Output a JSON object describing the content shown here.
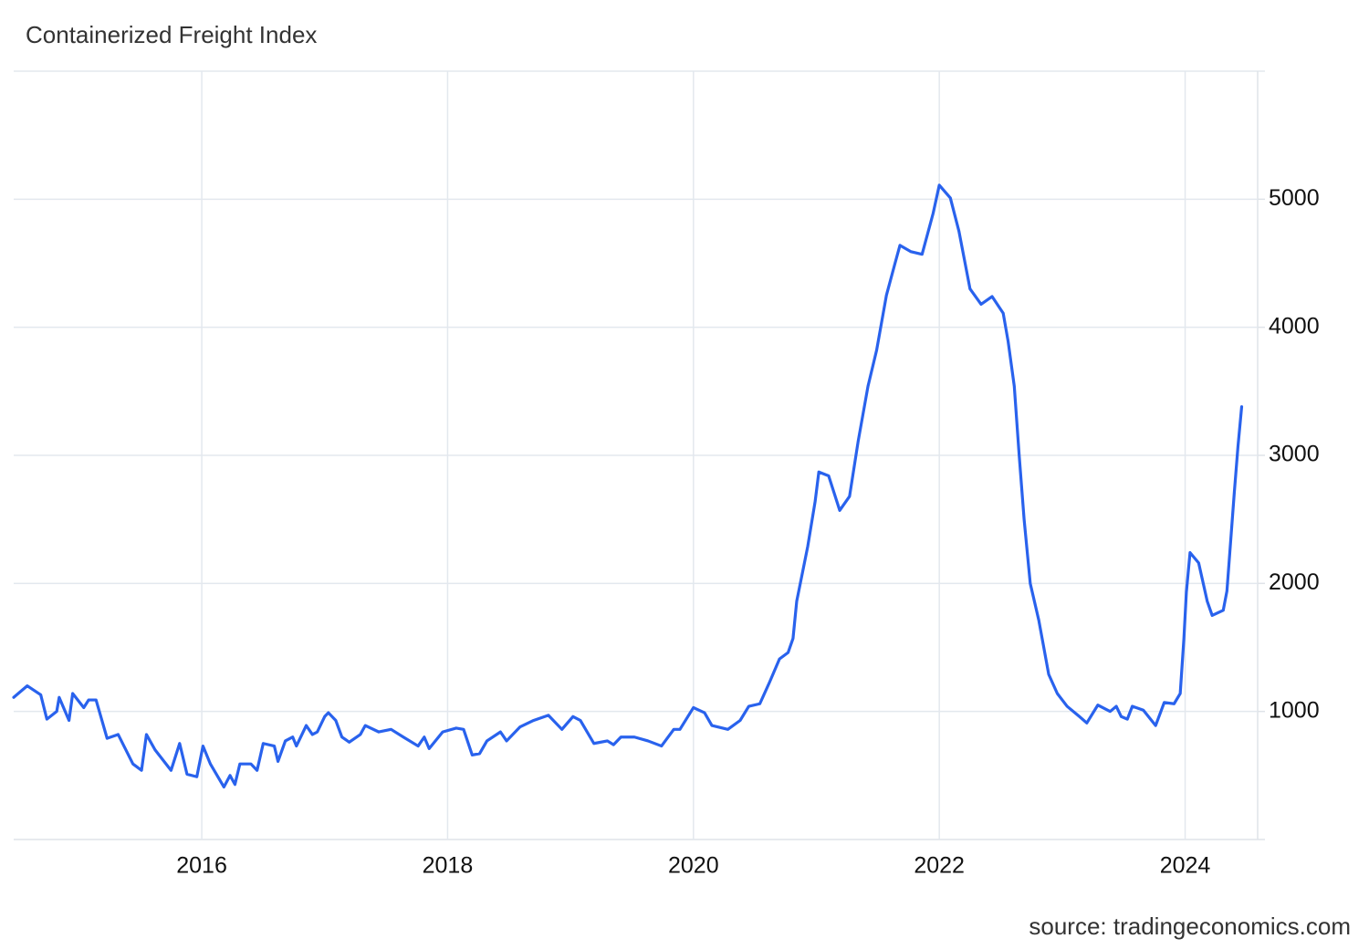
{
  "chart_data": {
    "type": "line",
    "title": "Containerized Freight Index",
    "source": "source: tradingeconomics.com",
    "color": "#2962ed",
    "grid": true,
    "xlim": [
      2014.47,
      2024.59
    ],
    "ylim": [
      0,
      6000
    ],
    "xticks": [
      2016,
      2018,
      2020,
      2022,
      2024
    ],
    "yticks": [
      1000,
      2000,
      3000,
      4000,
      5000
    ],
    "x": [
      2014.47,
      2014.58,
      2014.69,
      2014.74,
      2014.82,
      2014.84,
      2014.92,
      2014.95,
      2015.04,
      2015.08,
      2015.14,
      2015.23,
      2015.32,
      2015.44,
      2015.51,
      2015.55,
      2015.62,
      2015.75,
      2015.82,
      2015.88,
      2015.96,
      2016.01,
      2016.07,
      2016.18,
      2016.23,
      2016.27,
      2016.31,
      2016.4,
      2016.45,
      2016.5,
      2016.59,
      2016.62,
      2016.68,
      2016.74,
      2016.77,
      2016.85,
      2016.9,
      2016.94,
      2017.0,
      2017.03,
      2017.09,
      2017.14,
      2017.2,
      2017.29,
      2017.33,
      2017.44,
      2017.54,
      2017.64,
      2017.76,
      2017.81,
      2017.85,
      2017.96,
      2018.07,
      2018.13,
      2018.2,
      2018.26,
      2018.32,
      2018.43,
      2018.48,
      2018.59,
      2018.7,
      2018.82,
      2018.93,
      2019.02,
      2019.08,
      2019.19,
      2019.3,
      2019.35,
      2019.41,
      2019.52,
      2019.63,
      2019.74,
      2019.84,
      2019.89,
      2020.0,
      2020.09,
      2020.15,
      2020.28,
      2020.38,
      2020.45,
      2020.54,
      2020.62,
      2020.7,
      2020.77,
      2020.81,
      2020.84,
      2020.93,
      2020.99,
      2021.02,
      2021.1,
      2021.19,
      2021.27,
      2021.34,
      2021.42,
      2021.49,
      2021.57,
      2021.64,
      2021.68,
      2021.77,
      2021.86,
      2021.95,
      2022.0,
      2022.09,
      2022.16,
      2022.25,
      2022.34,
      2022.43,
      2022.52,
      2022.56,
      2022.61,
      2022.65,
      2022.69,
      2022.74,
      2022.81,
      2022.89,
      2022.96,
      2023.04,
      2023.14,
      2023.2,
      2023.29,
      2023.39,
      2023.44,
      2023.48,
      2023.53,
      2023.57,
      2023.66,
      2023.76,
      2023.83,
      2023.91,
      2023.96,
      2023.99,
      2024.01,
      2024.04,
      2024.11,
      2024.18,
      2024.22,
      2024.31,
      2024.34,
      2024.4,
      2024.43,
      2024.46
    ],
    "values": [
      1110,
      1200,
      1130,
      940,
      1000,
      1110,
      930,
      1140,
      1030,
      1090,
      1090,
      790,
      820,
      590,
      540,
      820,
      700,
      540,
      750,
      510,
      490,
      730,
      590,
      410,
      500,
      430,
      590,
      590,
      540,
      750,
      730,
      610,
      770,
      800,
      730,
      890,
      820,
      840,
      960,
      990,
      930,
      800,
      760,
      820,
      890,
      840,
      860,
      800,
      730,
      800,
      710,
      840,
      870,
      860,
      660,
      670,
      770,
      840,
      770,
      880,
      930,
      970,
      860,
      960,
      930,
      750,
      770,
      740,
      800,
      800,
      770,
      730,
      860,
      860,
      1030,
      990,
      890,
      860,
      930,
      1040,
      1060,
      1230,
      1410,
      1460,
      1570,
      1860,
      2290,
      2640,
      2870,
      2840,
      2570,
      2680,
      3110,
      3540,
      3820,
      4250,
      4500,
      4640,
      4590,
      4570,
      4890,
      5110,
      5010,
      4750,
      4300,
      4180,
      4240,
      4110,
      3890,
      3540,
      3000,
      2500,
      2000,
      1710,
      1290,
      1140,
      1040,
      960,
      910,
      1050,
      1000,
      1040,
      960,
      940,
      1040,
      1010,
      890,
      1070,
      1060,
      1140,
      1570,
      1930,
      2240,
      2160,
      1860,
      1750,
      1790,
      1940,
      2710,
      3070,
      3380
    ]
  }
}
